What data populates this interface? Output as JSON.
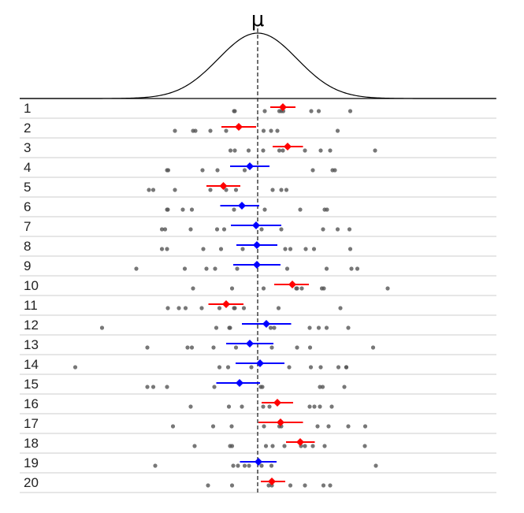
{
  "chart_data": {
    "type": "scatter",
    "title": "",
    "xlabel": "",
    "ylabel": "",
    "mu_label": "μ",
    "mu": 0,
    "xlim": [
      -5.3,
      6.1
    ],
    "density": {
      "mean": 0,
      "sd": 1
    },
    "colors": {
      "excludes_mu": "#ff0000",
      "includes_mu": "#0000ff",
      "points": "#555555",
      "density": "#000000",
      "mu_line": "#333333",
      "separator": "#cccccc"
    },
    "rows": [
      {
        "label": "1",
        "mean": 0.64,
        "ci": [
          0.32,
          0.96
        ],
        "covers_mu": false,
        "points": [
          -0.6,
          -0.58,
          0.18,
          0.55,
          0.6,
          0.65,
          1.36,
          1.55,
          2.35
        ]
      },
      {
        "label": "2",
        "mean": -0.48,
        "ci": [
          -0.92,
          -0.04
        ],
        "covers_mu": false,
        "points": [
          -2.1,
          -1.64,
          -1.58,
          -1.2,
          -0.8,
          0.15,
          0.34,
          0.5,
          2.03
        ]
      },
      {
        "label": "3",
        "mean": 0.76,
        "ci": [
          0.38,
          1.15
        ],
        "covers_mu": false,
        "points": [
          -0.69,
          -0.58,
          -0.23,
          0.14,
          0.55,
          0.64,
          1.2,
          1.6,
          1.84,
          2.98
        ]
      },
      {
        "label": "4",
        "mean": -0.2,
        "ci": [
          -0.7,
          0.3
        ],
        "covers_mu": true,
        "points": [
          -2.27,
          -2.3,
          -1.4,
          -1.02,
          -0.33,
          1.4,
          1.9,
          1.96
        ]
      },
      {
        "label": "5",
        "mean": -0.87,
        "ci": [
          -1.3,
          -0.44
        ],
        "covers_mu": false,
        "points": [
          -2.76,
          -2.65,
          -2.1,
          -1.2,
          -0.8,
          -0.55,
          0.38,
          0.6,
          0.73
        ]
      },
      {
        "label": "6",
        "mean": -0.4,
        "ci": [
          -0.95,
          0.04
        ],
        "covers_mu": true,
        "points": [
          -2.28,
          -2.3,
          -1.9,
          -1.67,
          -0.6,
          0.18,
          1.08,
          1.7,
          1.76
        ]
      },
      {
        "label": "7",
        "mean": -0.04,
        "ci": [
          -0.68,
          0.6
        ],
        "covers_mu": true,
        "points": [
          -2.43,
          -2.35,
          -1.7,
          -1.03,
          -0.85,
          0.1,
          0.6,
          1.66,
          2.03,
          2.33
        ]
      },
      {
        "label": "8",
        "mean": -0.02,
        "ci": [
          -0.54,
          0.5
        ],
        "covers_mu": true,
        "points": [
          -2.43,
          -2.3,
          -1.38,
          -0.93,
          -0.38,
          0.7,
          0.83,
          1.22,
          1.43,
          2.35
        ]
      },
      {
        "label": "9",
        "mean": -0.02,
        "ci": [
          -0.62,
          0.58
        ],
        "covers_mu": true,
        "points": [
          -3.08,
          -1.85,
          -1.3,
          -1.08,
          -0.52,
          0.75,
          1.75,
          2.38,
          2.53
        ]
      },
      {
        "label": "10",
        "mean": 0.88,
        "ci": [
          0.42,
          1.3
        ],
        "covers_mu": false,
        "points": [
          -1.64,
          -0.65,
          0.15,
          0.98,
          1.0,
          1.12,
          1.63,
          1.68,
          3.3
        ]
      },
      {
        "label": "11",
        "mean": -0.8,
        "ci": [
          -1.25,
          -0.36
        ],
        "covers_mu": false,
        "points": [
          -2.28,
          -2.0,
          -1.83,
          -1.42,
          -0.97,
          -0.6,
          -0.58,
          -0.35,
          0.53,
          2.1
        ]
      },
      {
        "label": "12",
        "mean": 0.22,
        "ci": [
          -0.4,
          0.85
        ],
        "covers_mu": true,
        "points": [
          -3.95,
          -1.05,
          -0.72,
          -0.7,
          0.33,
          0.42,
          1.32,
          1.55,
          1.75,
          2.3
        ]
      },
      {
        "label": "13",
        "mean": -0.2,
        "ci": [
          -0.8,
          0.4
        ],
        "covers_mu": true,
        "points": [
          -2.8,
          -1.78,
          -1.67,
          -1.12,
          -0.55,
          0.36,
          1.0,
          1.33,
          2.93
        ]
      },
      {
        "label": "14",
        "mean": 0.06,
        "ci": [
          -0.56,
          0.68
        ],
        "covers_mu": true,
        "points": [
          -4.63,
          -0.97,
          -0.75,
          -0.16,
          0.8,
          1.35,
          1.6,
          2.05,
          2.25,
          2.25
        ]
      },
      {
        "label": "15",
        "mean": -0.46,
        "ci": [
          -1.05,
          0.06
        ],
        "covers_mu": true,
        "points": [
          -2.8,
          -2.65,
          -2.3,
          -1.1,
          0.08,
          0.12,
          1.58,
          1.65,
          2.2
        ]
      },
      {
        "label": "16",
        "mean": 0.5,
        "ci": [
          0.1,
          0.9
        ],
        "covers_mu": false,
        "points": [
          -1.7,
          -0.73,
          -0.4,
          0.14,
          0.3,
          1.32,
          1.44,
          1.58,
          1.88
        ]
      },
      {
        "label": "17",
        "mean": 0.58,
        "ci": [
          0.02,
          1.15
        ],
        "covers_mu": false,
        "points": [
          -2.15,
          -1.13,
          -0.66,
          0.16,
          0.55,
          0.6,
          1.52,
          1.8,
          2.3,
          2.73
        ]
      },
      {
        "label": "18",
        "mean": 1.08,
        "ci": [
          0.72,
          1.45
        ],
        "covers_mu": false,
        "points": [
          -1.6,
          -0.7,
          -0.65,
          0.21,
          0.38,
          0.68,
          1.1,
          1.2,
          1.4,
          1.7,
          2.72
        ]
      },
      {
        "label": "19",
        "mean": 0.02,
        "ci": [
          -0.45,
          0.48
        ],
        "covers_mu": true,
        "points": [
          -2.6,
          -0.62,
          -0.5,
          -0.33,
          -0.22,
          0.1,
          0.35,
          3.0
        ]
      },
      {
        "label": "20",
        "mean": 0.36,
        "ci": [
          0.08,
          0.7
        ],
        "covers_mu": false,
        "points": [
          -1.26,
          -0.65,
          0.28,
          0.36,
          0.83,
          1.2,
          1.67,
          1.84
        ]
      }
    ]
  }
}
